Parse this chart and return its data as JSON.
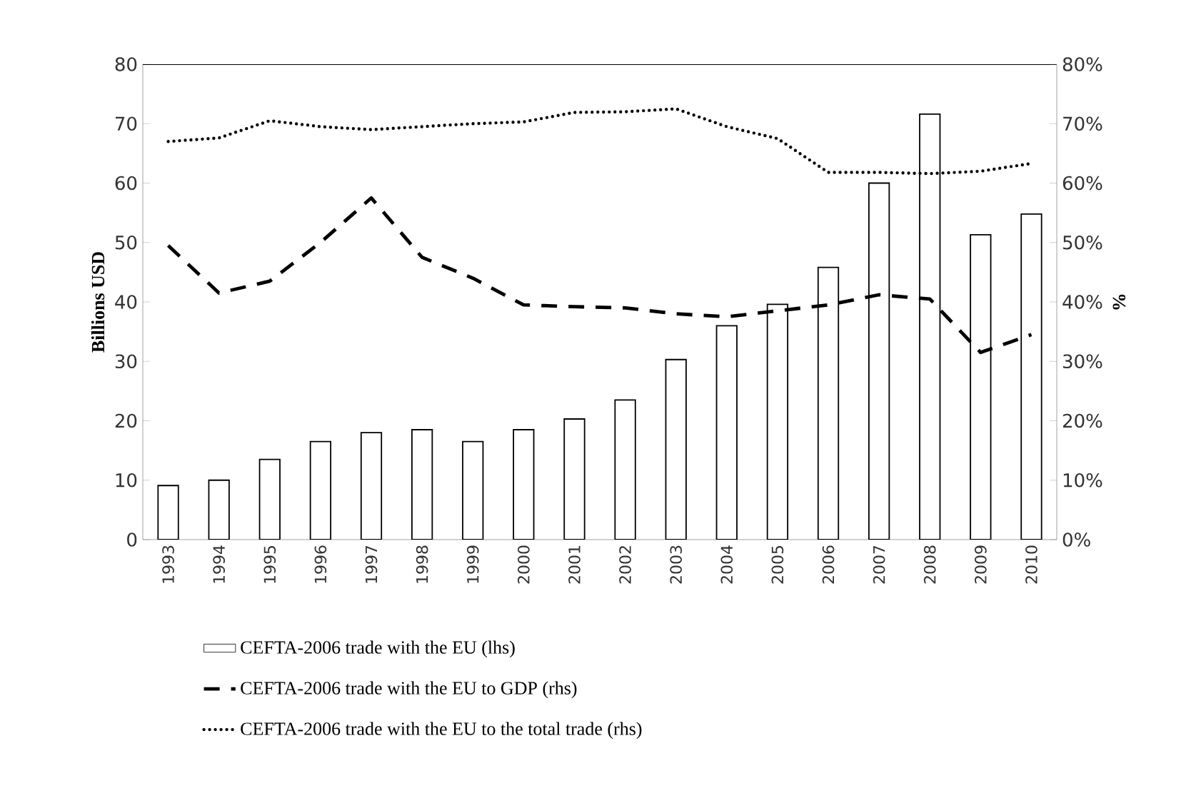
{
  "chart_data": {
    "type": "bar",
    "ylabel": "Billions USD",
    "y2label": "%",
    "categories": [
      "1993",
      "1994",
      "1995",
      "1996",
      "1997",
      "1998",
      "1999",
      "2000",
      "2001",
      "2002",
      "2003",
      "2004",
      "2005",
      "2006",
      "2007",
      "2008",
      "2009",
      "2010"
    ],
    "series": [
      {
        "name": "CEFTA-2006 trade with the EU (lhs)",
        "color": "#ffffff",
        "values": [
          9.1,
          10,
          13.5,
          16.5,
          18,
          18.5,
          16.5,
          18.5,
          20.3,
          23.5,
          30.3,
          36,
          39.6,
          45.8,
          60,
          71.6,
          51.3,
          54.8
        ]
      },
      {
        "name": "CEFTA-2006 trade with the EU to GDP (rhs)",
        "type": "line",
        "axis": "y2",
        "line_style": "dashed",
        "color": "#000000",
        "values": [
          49.5,
          41.5,
          43.5,
          50,
          57.5,
          47.5,
          44,
          39.5,
          39.2,
          39,
          38,
          37.5,
          38.5,
          39.5,
          41.2,
          40.5,
          31.5,
          34.5
        ]
      },
      {
        "name": "CEFTA-2006 trade with the EU to the total trade (rhs)",
        "type": "line",
        "axis": "y2",
        "line_style": "dotted",
        "color": "#000000",
        "values": [
          67,
          67.6,
          70.5,
          69.5,
          69,
          69.5,
          70,
          70.3,
          71.9,
          72,
          72.5,
          69.5,
          67.5,
          61.8,
          61.8,
          61.6,
          62,
          63.3
        ]
      }
    ],
    "ylim": [
      0,
      80
    ],
    "yticks": [
      0,
      10,
      20,
      30,
      40,
      50,
      60,
      70,
      80
    ],
    "y2lim": [
      0,
      80
    ],
    "y2ticks": [
      {
        "value": 0,
        "label": "0%"
      },
      {
        "value": 10,
        "label": "10%"
      },
      {
        "value": 20,
        "label": "20%"
      },
      {
        "value": 30,
        "label": "30%"
      },
      {
        "value": 40,
        "label": "40%"
      },
      {
        "value": 50,
        "label": "50%"
      },
      {
        "value": 60,
        "label": "60%"
      },
      {
        "value": 70,
        "label": "70%"
      },
      {
        "value": 80,
        "label": "80%"
      }
    ],
    "legend": "bottom"
  }
}
